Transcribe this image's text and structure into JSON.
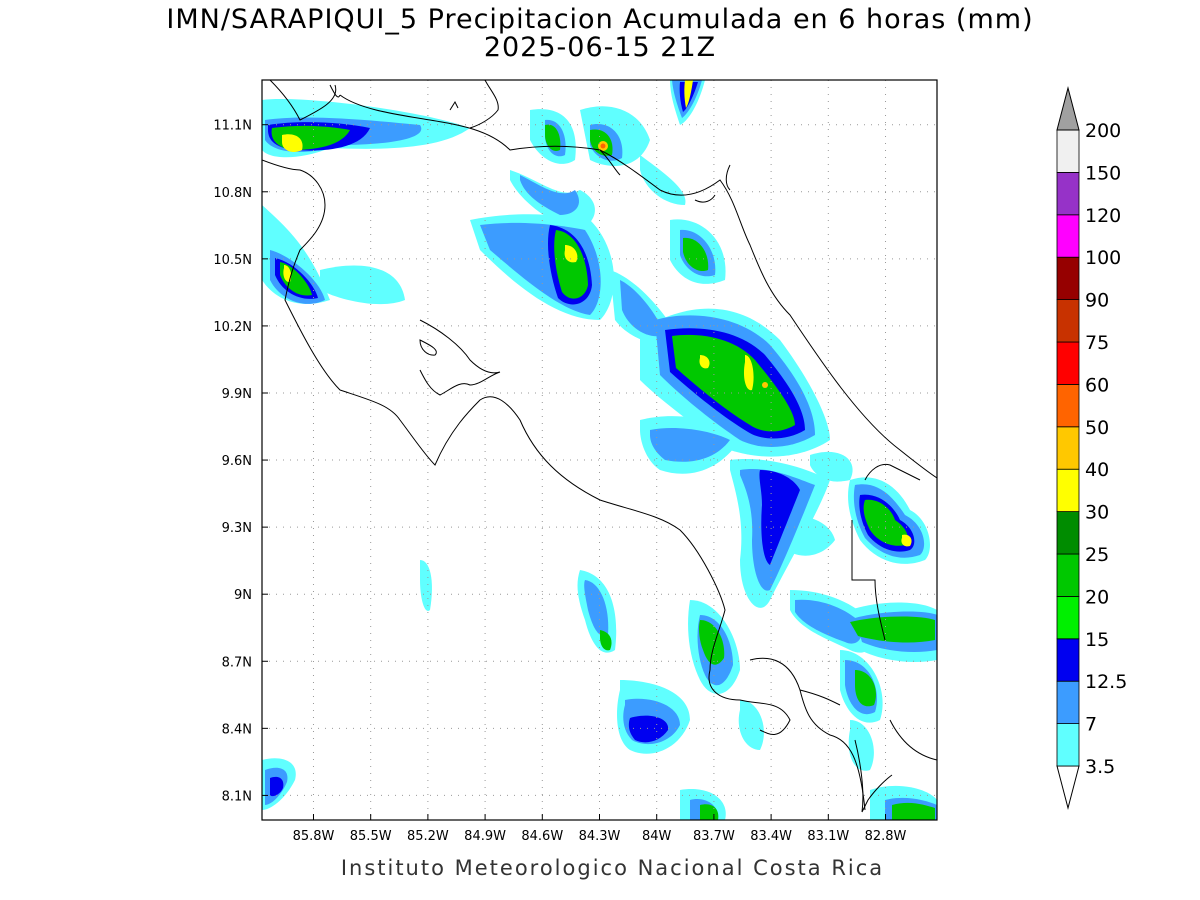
{
  "title": {
    "line1": "IMN/SARAPIQUI_5 Precipitacion Acumulada en 6 horas (mm)",
    "line2": "2025-06-15 21Z"
  },
  "footer": "Instituto Meteorologico Nacional Costa Rica",
  "axes": {
    "lat_labels": [
      "11.1N",
      "10.8N",
      "10.5N",
      "10.2N",
      "9.9N",
      "9.6N",
      "9.3N",
      "9N",
      "8.7N",
      "8.4N",
      "8.1N"
    ],
    "lat_values": [
      11.1,
      10.8,
      10.5,
      10.2,
      9.9,
      9.6,
      9.3,
      9.0,
      8.7,
      8.4,
      8.1
    ],
    "lon_labels": [
      "85.8W",
      "85.5W",
      "85.2W",
      "84.9W",
      "84.6W",
      "84.3W",
      "84W",
      "83.7W",
      "83.4W",
      "83.1W",
      "82.8W"
    ],
    "lon_values": [
      -85.8,
      -85.5,
      -85.2,
      -84.9,
      -84.6,
      -84.3,
      -84.0,
      -83.7,
      -83.4,
      -83.1,
      -82.8
    ],
    "lon_range": [
      -86.07,
      -82.53
    ],
    "lat_range": [
      7.99,
      11.3
    ],
    "grid": true
  },
  "colorbar": {
    "labels": [
      "3.5",
      "7",
      "12.5",
      "15",
      "20",
      "25",
      "30",
      "40",
      "50",
      "60",
      "75",
      "90",
      "100",
      "120",
      "150",
      "200"
    ],
    "colors": [
      "#ffffff",
      "#60ffff",
      "#3c9cff",
      "#0000f0",
      "#00f000",
      "#00c800",
      "#008c00",
      "#ffff00",
      "#ffc800",
      "#ff6400",
      "#ff0000",
      "#c83200",
      "#960000",
      "#ff00ff",
      "#9632c8",
      "#f0f0f0",
      "#a0a0a0"
    ]
  },
  "map_description_colors": {
    "light_cyan": "#60ffff",
    "light_blue": "#3c9cff",
    "blue": "#0000f0",
    "green": "#00c800"
  }
}
